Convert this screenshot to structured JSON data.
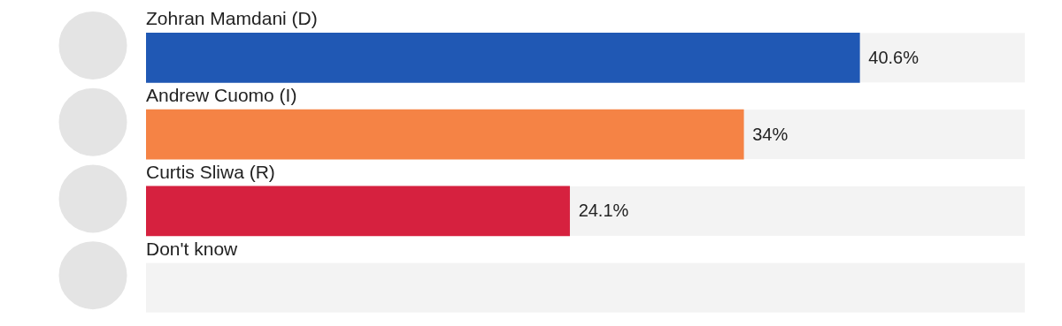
{
  "chart_data": {
    "type": "bar",
    "orientation": "horizontal",
    "categories": [
      "Zohran Mamdani (D)",
      "Andrew Cuomo (I)",
      "Curtis Sliwa (R)",
      "Don't know"
    ],
    "values": [
      40.6,
      34,
      24.1,
      null
    ],
    "value_labels": [
      "40.6%",
      "34%",
      "24.1%",
      null
    ],
    "colors": [
      "#2058b4",
      "#f58345",
      "#d6213f",
      "#bdbdbd"
    ],
    "xlim": [
      0,
      50
    ],
    "grid": false,
    "data_labels": true,
    "tick_labels": false
  }
}
